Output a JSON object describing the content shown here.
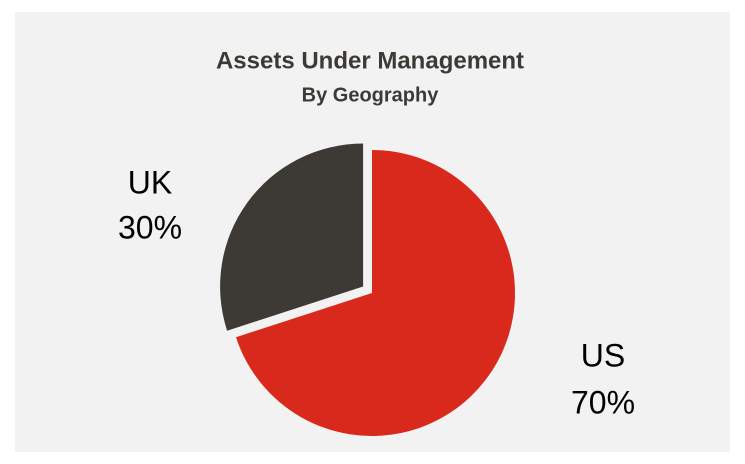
{
  "chart_data": {
    "type": "pie",
    "title": "Assets Under Management",
    "subtitle": "By Geography",
    "categories": [
      "US",
      "UK"
    ],
    "values": [
      70,
      30
    ],
    "value_labels": [
      "70%",
      "30%"
    ],
    "colors": [
      "#d9291c",
      "#3d3935"
    ],
    "explode": [
      false,
      true
    ]
  }
}
